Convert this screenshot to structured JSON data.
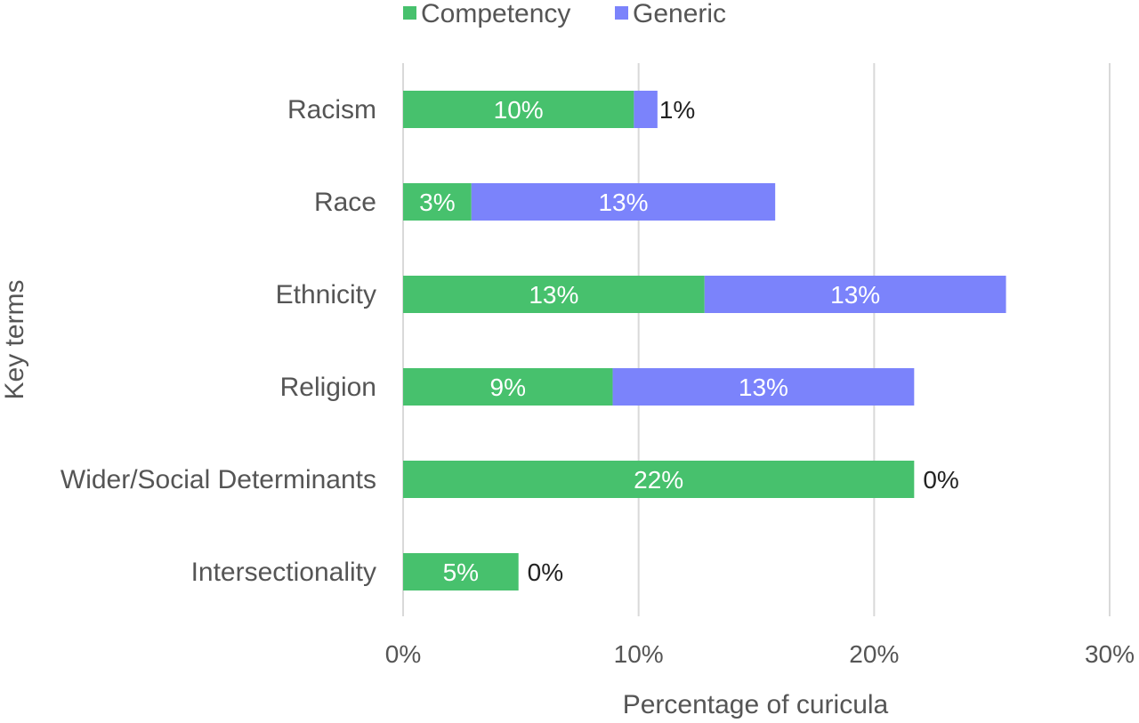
{
  "chart_data": {
    "type": "bar",
    "orientation": "horizontal",
    "stacked": true,
    "categories": [
      "Racism",
      "Race",
      "Ethnicity",
      "Religion",
      "Wider/Social Determinants",
      "Intersectionality"
    ],
    "series": [
      {
        "name": "Competency",
        "values": [
          9.8,
          2.9,
          12.8,
          8.9,
          21.7,
          4.9
        ],
        "labels": [
          "10%",
          "3%",
          "13%",
          "9%",
          "22%",
          "5%"
        ],
        "color": "#47c16d"
      },
      {
        "name": "Generic",
        "values": [
          1.0,
          12.9,
          12.8,
          12.8,
          0,
          0
        ],
        "labels": [
          "1%",
          "13%",
          "13%",
          "13%",
          "0%",
          "0%"
        ],
        "color": "#7b83fb"
      }
    ],
    "xlabel": "Percentage of curicula",
    "ylabel": "Key terms",
    "xlim": [
      0,
      30
    ],
    "xticks": [
      0,
      10,
      20,
      30
    ],
    "xtick_labels": [
      "0%",
      "10%",
      "20%",
      "30%"
    ],
    "grid": true,
    "legend_position": "top"
  }
}
